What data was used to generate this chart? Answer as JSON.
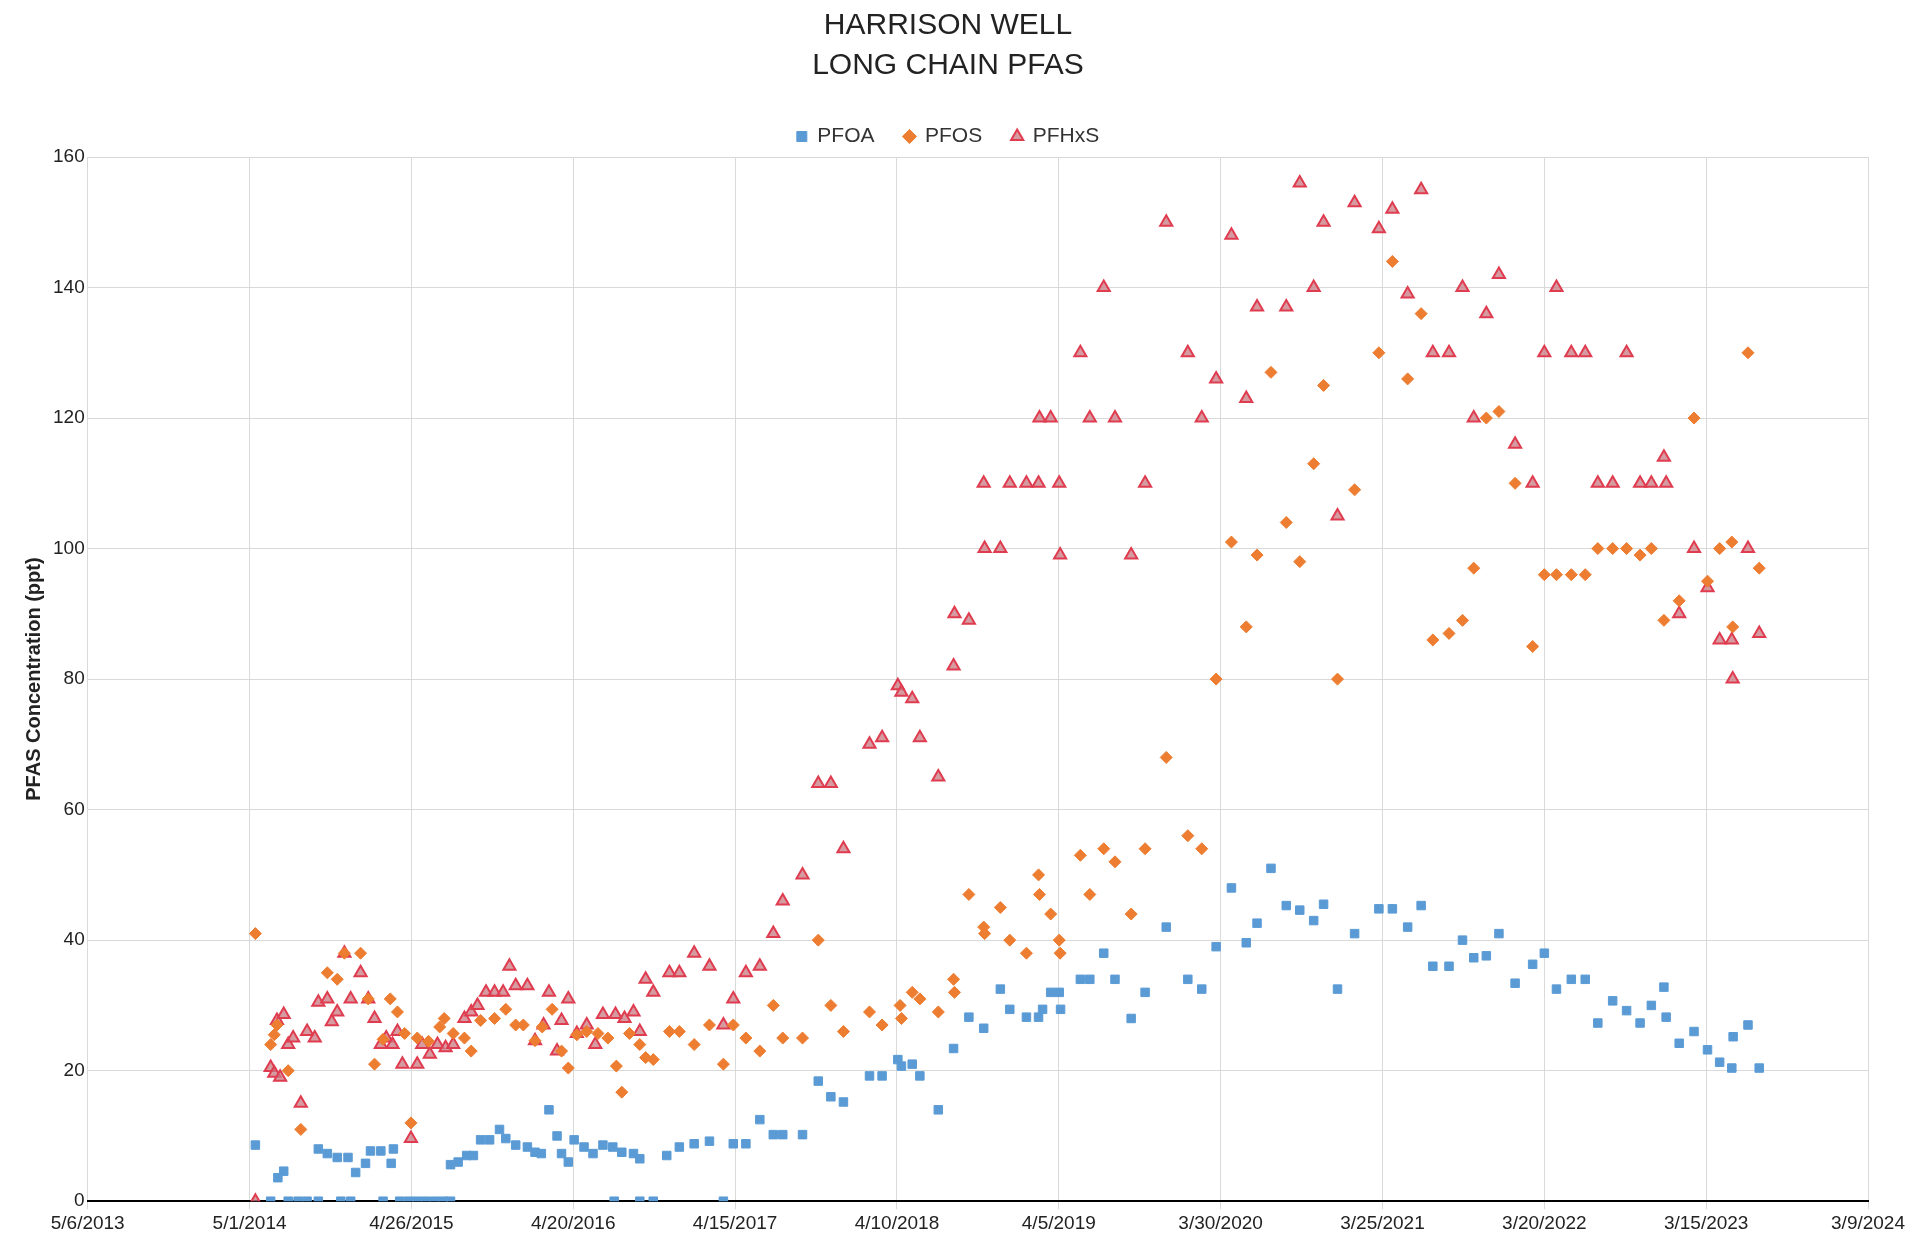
{
  "chart_data": {
    "type": "scatter",
    "title": "HARRISON WELL",
    "subtitle": "LONG CHAIN PFAS",
    "ylabel": "PFAS Concentration (ppt)",
    "legend": "top",
    "grid": true,
    "xlim": [
      "2013-05-06",
      "2024-03-09"
    ],
    "xticks": [
      {
        "value": "2013-05-06",
        "label": "5/6/2013"
      },
      {
        "value": "2014-05-01",
        "label": "5/1/2014"
      },
      {
        "value": "2015-04-26",
        "label": "4/26/2015"
      },
      {
        "value": "2016-04-20",
        "label": "4/20/2016"
      },
      {
        "value": "2017-04-15",
        "label": "4/15/2017"
      },
      {
        "value": "2018-04-10",
        "label": "4/10/2018"
      },
      {
        "value": "2019-04-05",
        "label": "4/5/2019"
      },
      {
        "value": "2020-03-30",
        "label": "3/30/2020"
      },
      {
        "value": "2021-03-25",
        "label": "3/25/2021"
      },
      {
        "value": "2022-03-20",
        "label": "3/20/2022"
      },
      {
        "value": "2023-03-15",
        "label": "3/15/2023"
      },
      {
        "value": "2024-03-09",
        "label": "3/9/2024"
      }
    ],
    "ylim": [
      0,
      160
    ],
    "yticks": [
      0,
      20,
      40,
      60,
      80,
      100,
      120,
      140,
      160
    ],
    "series": [
      {
        "name": "PFOA",
        "color": "#5b9bd5",
        "marker": "square",
        "x": [
          "2014-05-14",
          "2014-06-17",
          "2014-07-03",
          "2014-07-16",
          "2014-07-26",
          "2014-08-17",
          "2014-09-06",
          "2014-10-01",
          "2014-11-20",
          "2014-12-12",
          "2015-02-22",
          "2015-03-31",
          "2015-04-20",
          "2015-05-09",
          "2015-05-28",
          "2015-06-17",
          "2015-07-06",
          "2015-07-22",
          "2016-07-20",
          "2016-09-15",
          "2016-10-15",
          "2017-03-20",
          "2014-10-01",
          "2014-10-21",
          "2014-11-12",
          "2014-12-06",
          "2014-12-23",
          "2015-01-14",
          "2015-01-25",
          "2015-02-17",
          "2015-03-12",
          "2015-03-17",
          "2015-07-22",
          "2015-08-08",
          "2015-08-27",
          "2015-09-11",
          "2015-09-27",
          "2015-10-17",
          "2015-11-08",
          "2015-11-22",
          "2015-12-14",
          "2016-01-09",
          "2016-01-26",
          "2016-02-09",
          "2016-02-26",
          "2016-03-15",
          "2016-03-25",
          "2016-04-09",
          "2016-04-22",
          "2016-05-14",
          "2016-06-03",
          "2016-06-25",
          "2016-07-17",
          "2016-08-06",
          "2016-09-01",
          "2016-09-15",
          "2016-11-14",
          "2016-12-12",
          "2017-01-14",
          "2017-02-17",
          "2017-04-11",
          "2017-05-09",
          "2017-06-09",
          "2017-07-09",
          "2017-07-30",
          "2017-09-12",
          "2017-10-17",
          "2017-11-14",
          "2017-12-12",
          "2018-02-08",
          "2018-03-08",
          "2018-04-12",
          "2018-04-20",
          "2018-05-14",
          "2018-05-31",
          "2018-07-11",
          "2018-08-14",
          "2018-09-17",
          "2018-10-20",
          "2018-11-26",
          "2018-12-17",
          "2019-01-23",
          "2019-02-19",
          "2019-02-28",
          "2019-03-18",
          "2019-04-06",
          "2019-04-09",
          "2019-05-23",
          "2019-06-13",
          "2019-07-14",
          "2019-08-08",
          "2019-09-13",
          "2019-10-14",
          "2019-11-30",
          "2020-01-17",
          "2020-02-17",
          "2020-03-20",
          "2020-04-23",
          "2020-05-26",
          "2020-06-19",
          "2020-07-20",
          "2020-08-23",
          "2020-09-22",
          "2020-10-23",
          "2020-11-14",
          "2020-12-15",
          "2021-01-22",
          "2021-03-17",
          "2021-04-16",
          "2021-05-20",
          "2021-06-19",
          "2021-07-15",
          "2021-08-20",
          "2021-09-19",
          "2021-10-14",
          "2021-11-11",
          "2021-12-09",
          "2022-01-14",
          "2022-02-22",
          "2022-03-20",
          "2022-04-16",
          "2022-05-19",
          "2022-06-19",
          "2022-07-17",
          "2022-08-19",
          "2022-09-19",
          "2022-10-19",
          "2022-11-13",
          "2022-12-11",
          "2022-12-16",
          "2023-01-14",
          "2023-02-16",
          "2023-03-18",
          "2023-04-14",
          "2023-05-11",
          "2023-05-14",
          "2023-06-16",
          "2023-07-11"
        ],
        "values": [
          8.6,
          0,
          3.6,
          4.6,
          0,
          0,
          0,
          0,
          0,
          0,
          0,
          0,
          0,
          0,
          0,
          0,
          0,
          0,
          0,
          0,
          0,
          0,
          8,
          7.3,
          6.7,
          6.7,
          4.4,
          5.8,
          7.7,
          7.7,
          5.8,
          8,
          5.6,
          6,
          7,
          7,
          9.4,
          9.4,
          11,
          9.6,
          8.6,
          8.3,
          7.5,
          7.3,
          14,
          10,
          7.3,
          6,
          9.4,
          8.3,
          7.3,
          8.6,
          8.3,
          7.5,
          7.3,
          6.5,
          7,
          8.3,
          8.8,
          9.2,
          8.8,
          8.8,
          12.5,
          10.2,
          10.2,
          10.2,
          18.4,
          16,
          15.2,
          19.2,
          19.2,
          21.7,
          20.7,
          21,
          19.2,
          14,
          23.4,
          28.2,
          26.5,
          32.5,
          29.4,
          28.2,
          28.2,
          29.4,
          32,
          32,
          29.4,
          34,
          34,
          38,
          34,
          28,
          32,
          42,
          34,
          32.5,
          39,
          48,
          39.6,
          42.6,
          51,
          45.3,
          44.6,
          43,
          45.5,
          32.5,
          41,
          44.8,
          44.8,
          42,
          45.3,
          36,
          36,
          40,
          37.3,
          37.6,
          41,
          33.4,
          36.3,
          38,
          32.5,
          34,
          34,
          27.3,
          30.7,
          29.2,
          27.3,
          30,
          32.8,
          28.2,
          24.2,
          26,
          23.2,
          21.3,
          20.4,
          25.2,
          27,
          20.4
        ]
      },
      {
        "name": "PFOS",
        "color": "#ed7d31",
        "marker": "diamond",
        "x": [
          "2014-05-14",
          "2014-06-17",
          "2014-06-25",
          "2014-07-01",
          "2014-07-26",
          "2014-08-23",
          "2014-10-21",
          "2014-11-12",
          "2014-11-28",
          "2015-01-03",
          "2015-01-20",
          "2015-02-03",
          "2015-02-22",
          "2015-03-10",
          "2015-03-26",
          "2015-04-11",
          "2015-04-25",
          "2015-05-09",
          "2015-06-03",
          "2015-06-28",
          "2015-07-08",
          "2015-07-28",
          "2015-08-22",
          "2015-09-06",
          "2015-09-27",
          "2015-10-28",
          "2015-11-22",
          "2015-12-14",
          "2015-12-31",
          "2016-01-26",
          "2016-02-11",
          "2016-03-04",
          "2016-03-25",
          "2016-04-09",
          "2016-04-28",
          "2016-05-20",
          "2016-06-14",
          "2016-07-06",
          "2016-07-25",
          "2016-08-06",
          "2016-08-23",
          "2016-09-15",
          "2016-09-28",
          "2016-10-15",
          "2016-11-20",
          "2016-12-12",
          "2017-01-14",
          "2017-02-17",
          "2017-03-20",
          "2017-04-11",
          "2017-05-09",
          "2017-06-09",
          "2017-07-09",
          "2017-07-30",
          "2017-09-12",
          "2017-10-17",
          "2017-11-14",
          "2017-12-12",
          "2018-02-08",
          "2018-03-08",
          "2018-04-17",
          "2018-04-20",
          "2018-05-14",
          "2018-05-31",
          "2018-07-11",
          "2018-08-14",
          "2018-08-16",
          "2018-09-17",
          "2018-10-20",
          "2018-10-22",
          "2018-11-26",
          "2018-12-17",
          "2019-01-23",
          "2019-02-19",
          "2019-02-21",
          "2019-03-18",
          "2019-04-06",
          "2019-04-08",
          "2019-05-23",
          "2019-06-13",
          "2019-07-14",
          "2019-08-08",
          "2019-09-13",
          "2019-10-14",
          "2019-11-30",
          "2020-01-17",
          "2020-02-17",
          "2020-03-20",
          "2020-04-23",
          "2020-05-26",
          "2020-06-19",
          "2020-07-20",
          "2020-08-23",
          "2020-09-22",
          "2020-10-23",
          "2020-11-14",
          "2020-12-15",
          "2021-01-22",
          "2021-03-17",
          "2021-04-16",
          "2021-05-20",
          "2021-06-19",
          "2021-07-15",
          "2021-08-20",
          "2021-09-19",
          "2021-10-14",
          "2021-11-11",
          "2021-12-09",
          "2022-01-14",
          "2022-02-22",
          "2022-03-20",
          "2022-04-16",
          "2022-05-19",
          "2022-06-19",
          "2022-07-17",
          "2022-08-19",
          "2022-09-19",
          "2022-10-19",
          "2022-11-13",
          "2022-12-11",
          "2023-01-14",
          "2023-02-16",
          "2023-03-18",
          "2023-04-14",
          "2023-05-11",
          "2023-05-13",
          "2023-06-16",
          "2023-07-11"
        ],
        "values": [
          41,
          24,
          25.5,
          27,
          20,
          11,
          35,
          34,
          38,
          38,
          31,
          21,
          24.8,
          31,
          29,
          25.7,
          12,
          25,
          24.5,
          26.7,
          28,
          25.7,
          25,
          23,
          27.7,
          28,
          29.4,
          27,
          27,
          24.6,
          26.7,
          29.4,
          23,
          20.4,
          25.5,
          26,
          25.7,
          25,
          20.7,
          16.7,
          25.7,
          24,
          22,
          21.7,
          26,
          26,
          24,
          27,
          21,
          27,
          25,
          23,
          30,
          25,
          25,
          40,
          30,
          26,
          29,
          27,
          30,
          28,
          32,
          31,
          29,
          34,
          32,
          47,
          42,
          41,
          45,
          40,
          38,
          50,
          47,
          44,
          40,
          38,
          53,
          47,
          54,
          52,
          44,
          54,
          68,
          56,
          54,
          80,
          101,
          88,
          99,
          127,
          104,
          98,
          113,
          125,
          80,
          109,
          130,
          144,
          126,
          136,
          86,
          87,
          89,
          97,
          120,
          121,
          110,
          85,
          96,
          96,
          96,
          96,
          100,
          100,
          100,
          99,
          100,
          89,
          92,
          120,
          95,
          100,
          101,
          88,
          130,
          97
        ]
      },
      {
        "name": "PFHxS",
        "color": "#e03c50",
        "marker": "triangle",
        "x": [
          "2014-05-14",
          "2014-06-17",
          "2014-06-25",
          "2014-07-08",
          "2014-07-01",
          "2014-07-16",
          "2014-07-26",
          "2014-08-06",
          "2014-08-23",
          "2014-09-06",
          "2014-09-23",
          "2014-10-01",
          "2014-10-21",
          "2014-10-31",
          "2014-11-12",
          "2014-11-28",
          "2014-12-12",
          "2015-01-03",
          "2015-01-20",
          "2015-02-03",
          "2015-02-17",
          "2015-03-01",
          "2015-03-15",
          "2015-03-26",
          "2015-04-06",
          "2015-04-25",
          "2015-05-09",
          "2015-05-20",
          "2015-06-06",
          "2015-06-23",
          "2015-07-11",
          "2015-07-28",
          "2015-08-22",
          "2015-09-06",
          "2015-09-20",
          "2015-10-09",
          "2015-10-28",
          "2015-11-16",
          "2015-11-30",
          "2015-12-14",
          "2016-01-09",
          "2016-01-26",
          "2016-02-14",
          "2016-02-26",
          "2016-03-15",
          "2016-03-25",
          "2016-04-09",
          "2016-04-28",
          "2016-05-20",
          "2016-06-08",
          "2016-06-25",
          "2016-07-23",
          "2016-08-12",
          "2016-09-01",
          "2016-09-15",
          "2016-09-28",
          "2016-10-15",
          "2016-11-20",
          "2016-12-12",
          "2017-01-14",
          "2017-02-17",
          "2017-03-20",
          "2017-04-11",
          "2017-05-09",
          "2017-06-09",
          "2017-07-09",
          "2017-07-30",
          "2017-09-12",
          "2017-10-17",
          "2017-11-14",
          "2017-12-12",
          "2018-02-08",
          "2018-03-08",
          "2018-04-12",
          "2018-04-20",
          "2018-05-14",
          "2018-05-31",
          "2018-07-11",
          "2018-08-14",
          "2018-08-16",
          "2018-09-17",
          "2018-10-20",
          "2018-10-22",
          "2018-11-26",
          "2018-12-17",
          "2019-01-23",
          "2019-02-19",
          "2019-02-21",
          "2019-03-18",
          "2019-04-06",
          "2019-04-08",
          "2019-05-23",
          "2019-06-13",
          "2019-07-14",
          "2019-08-08",
          "2019-09-13",
          "2019-10-14",
          "2019-11-30",
          "2020-01-17",
          "2020-02-17",
          "2020-03-20",
          "2020-04-23",
          "2020-05-26",
          "2020-06-19",
          "2020-08-23",
          "2020-09-22",
          "2020-10-23",
          "2020-11-14",
          "2020-12-15",
          "2021-01-22",
          "2021-03-17",
          "2021-04-16",
          "2021-05-20",
          "2021-06-19",
          "2021-07-15",
          "2021-08-20",
          "2021-09-19",
          "2021-10-14",
          "2021-11-11",
          "2021-12-09",
          "2022-01-14",
          "2022-02-22",
          "2022-03-20",
          "2022-04-16",
          "2022-05-19",
          "2022-06-19",
          "2022-07-17",
          "2022-08-19",
          "2022-09-19",
          "2022-10-19",
          "2022-11-13",
          "2022-12-11",
          "2022-12-16",
          "2023-01-14",
          "2023-02-16",
          "2023-03-18",
          "2023-04-14",
          "2023-05-11",
          "2023-05-13",
          "2023-06-16",
          "2023-07-11"
        ],
        "values": [
          0,
          20.5,
          19.6,
          19,
          27.7,
          28.6,
          24,
          25,
          15,
          26,
          25,
          30.5,
          31,
          27.5,
          29,
          38,
          31,
          35,
          31,
          28,
          24,
          25,
          24,
          26,
          21,
          9.6,
          21,
          24,
          22.5,
          24,
          23.5,
          24,
          28,
          29,
          30,
          32,
          32,
          32,
          36,
          33,
          33,
          24.6,
          27,
          32,
          23,
          27.7,
          31,
          25.7,
          27,
          24,
          28.6,
          28.6,
          28,
          29,
          26,
          34,
          32,
          35,
          35,
          38,
          36,
          27,
          31,
          35,
          36,
          41,
          46,
          50,
          64,
          64,
          54,
          70,
          71,
          79,
          78,
          77,
          71,
          65,
          82,
          90,
          89,
          110,
          100,
          100,
          110,
          110,
          110,
          120,
          120,
          110,
          99,
          130,
          120,
          140,
          120,
          99,
          110,
          150,
          130,
          120,
          126,
          148,
          123,
          137,
          137,
          156,
          140,
          150,
          105,
          153,
          149,
          152,
          139,
          155,
          130,
          130,
          140,
          120,
          136,
          142,
          116,
          110,
          130,
          140,
          130,
          130,
          110,
          110,
          130,
          110,
          110,
          114,
          110,
          90,
          100,
          94,
          86,
          86,
          80,
          100,
          87
        ]
      }
    ]
  }
}
